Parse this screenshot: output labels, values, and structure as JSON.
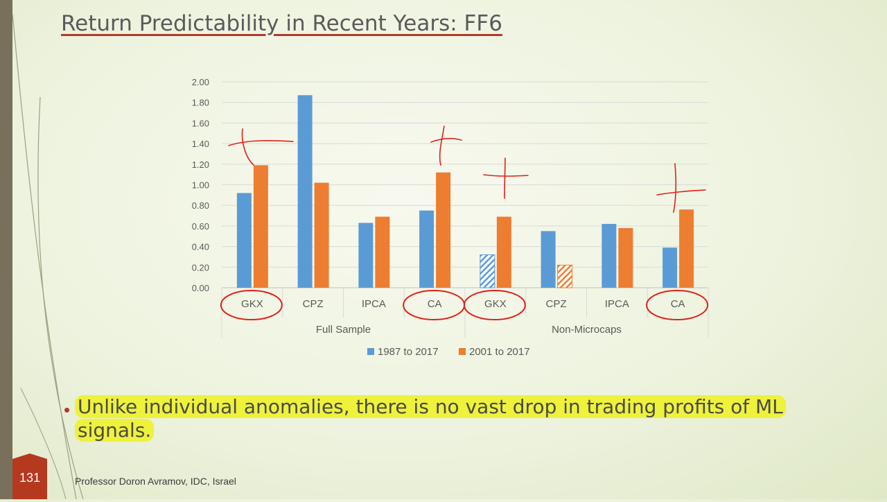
{
  "slide": {
    "title": "Return Predictability in Recent Years: FF6",
    "bullet": "Unlike individual anomalies, there is no vast drop in trading profits of ML signals.",
    "slide_number": "131",
    "footer": "Professor Doron Avramov, IDC, Israel",
    "accent_color": "#b33a2a"
  },
  "chart_data": {
    "type": "bar",
    "title": "",
    "xlabel": "",
    "ylabel": "",
    "ylim": [
      0,
      2.0
    ],
    "yticks": [
      "0.00",
      "0.20",
      "0.40",
      "0.60",
      "0.80",
      "1.00",
      "1.20",
      "1.40",
      "1.60",
      "1.80",
      "2.00"
    ],
    "grid": true,
    "legend_position": "bottom",
    "groups": [
      {
        "name": "Full Sample",
        "categories": [
          "GKX",
          "CPZ",
          "IPCA",
          "CA"
        ]
      },
      {
        "name": "Non-Microcaps",
        "categories": [
          "GKX",
          "CPZ",
          "IPCA",
          "CA"
        ]
      }
    ],
    "categories": [
      "GKX",
      "CPZ",
      "IPCA",
      "CA",
      "GKX",
      "CPZ",
      "IPCA",
      "CA"
    ],
    "series": [
      {
        "name": "1987 to 2017",
        "color": "#5b9bd5",
        "values": [
          0.92,
          1.87,
          0.63,
          0.75,
          0.32,
          0.55,
          0.62,
          0.39
        ],
        "hatched": [
          false,
          false,
          false,
          false,
          true,
          false,
          false,
          false
        ]
      },
      {
        "name": "2001 to 2017",
        "color": "#ed7d31",
        "values": [
          1.19,
          1.02,
          0.69,
          1.12,
          0.69,
          0.22,
          0.58,
          0.76
        ],
        "hatched": [
          false,
          false,
          false,
          false,
          false,
          true,
          false,
          false
        ]
      }
    ],
    "annotations": {
      "circled_categories": [
        0,
        3,
        4,
        7
      ],
      "ink_color": "#e0201a"
    }
  }
}
